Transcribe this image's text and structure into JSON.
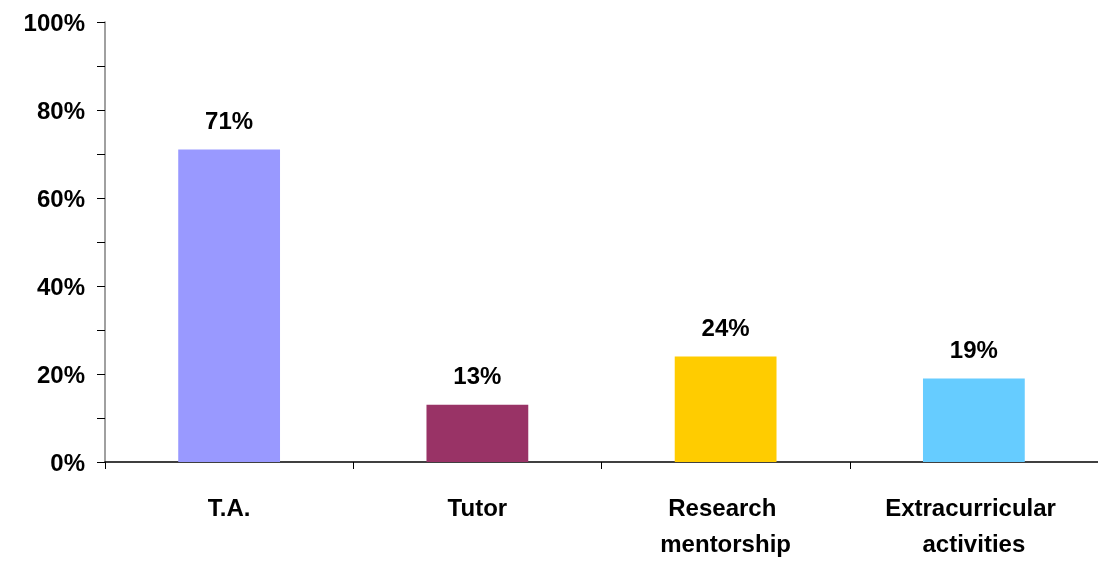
{
  "chart_data": {
    "type": "bar",
    "categories": [
      "T.A.",
      "Tutor",
      "Research mentorship",
      "Extracurricular activities"
    ],
    "values": [
      71,
      13,
      24,
      19
    ],
    "colors": [
      "#9999ff",
      "#993366",
      "#ffcc00",
      "#66ccff"
    ],
    "value_labels": [
      "71%",
      "13%",
      "24%",
      "19%"
    ],
    "ylim": [
      0,
      100
    ],
    "yticks": [
      {
        "value": 0,
        "label": "0%"
      },
      {
        "value": 10,
        "label": null
      },
      {
        "value": 20,
        "label": "20%"
      },
      {
        "value": 30,
        "label": null
      },
      {
        "value": 40,
        "label": "40%"
      },
      {
        "value": 50,
        "label": null
      },
      {
        "value": 60,
        "label": "60%"
      },
      {
        "value": 70,
        "label": null
      },
      {
        "value": 80,
        "label": "80%"
      },
      {
        "value": 90,
        "label": null
      },
      {
        "value": 100,
        "label": "100%"
      }
    ]
  }
}
